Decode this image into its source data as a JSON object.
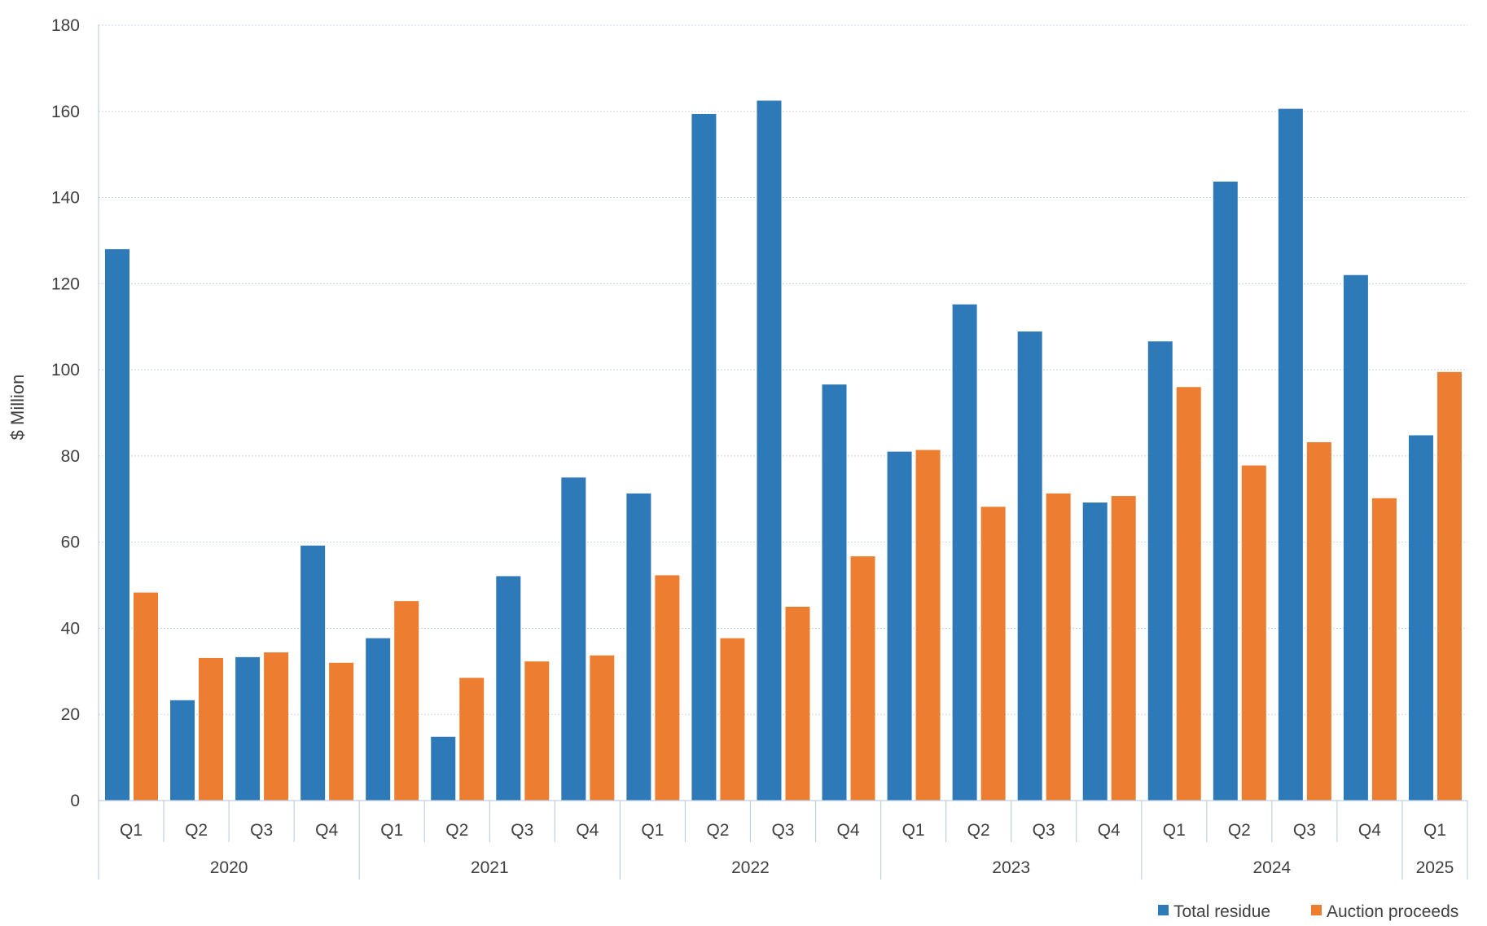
{
  "chart_data": {
    "type": "bar",
    "title": "",
    "ylabel": "$ Million",
    "xlabel": "",
    "ylim": [
      0,
      180
    ],
    "yticks": [
      0,
      20,
      40,
      60,
      80,
      100,
      120,
      140,
      160,
      180
    ],
    "grid": true,
    "legend_position": "bottom-right",
    "categories": [
      "Q1",
      "Q2",
      "Q3",
      "Q4",
      "Q1",
      "Q2",
      "Q3",
      "Q4",
      "Q1",
      "Q2",
      "Q3",
      "Q4",
      "Q1",
      "Q2",
      "Q3",
      "Q4",
      "Q1",
      "Q2",
      "Q3",
      "Q4",
      "Q1"
    ],
    "year_groups": [
      {
        "label": "2020",
        "count": 4
      },
      {
        "label": "2021",
        "count": 4
      },
      {
        "label": "2022",
        "count": 4
      },
      {
        "label": "2023",
        "count": 4
      },
      {
        "label": "2024",
        "count": 4
      },
      {
        "label": "2025",
        "count": 1
      }
    ],
    "series": [
      {
        "name": "Total residue",
        "color": "#2e7ab8",
        "values": [
          128,
          23.3,
          33.3,
          59.2,
          37.7,
          14.8,
          52.1,
          75,
          71.3,
          159.4,
          162.5,
          96.6,
          81,
          115.2,
          108.9,
          69.2,
          106.6,
          143.7,
          160.6,
          122,
          84.8
        ]
      },
      {
        "name": "Auction proceeds",
        "color": "#ed7d31",
        "values": [
          48.3,
          33.1,
          34.4,
          32,
          46.3,
          28.5,
          32.3,
          33.7,
          52.3,
          37.7,
          45,
          56.7,
          81.4,
          68.2,
          71.3,
          70.7,
          96,
          77.8,
          83.2,
          70.2,
          99.5
        ]
      }
    ]
  }
}
